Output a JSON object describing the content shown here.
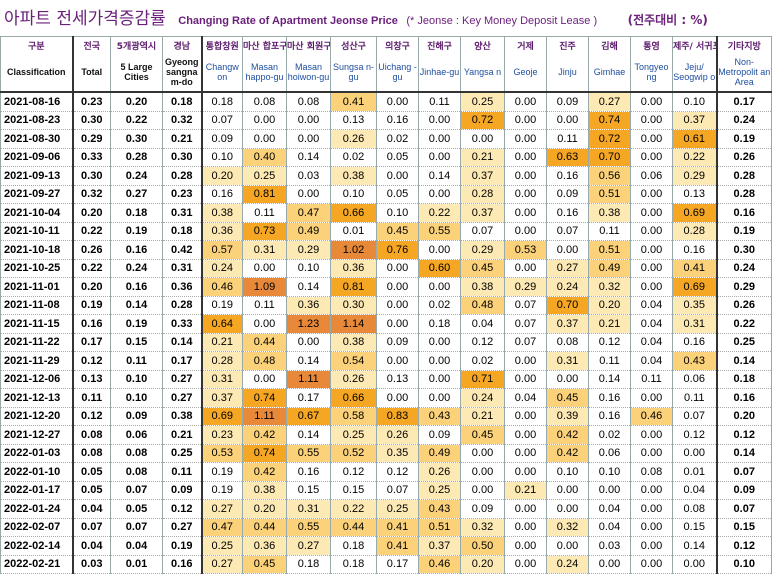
{
  "title": {
    "korean": "아파트 전세가격증감률",
    "english": "Changing Rate of Apartment Jeonse Price",
    "note": "(* Jeonse : Key Money Deposit Lease )",
    "unit": "(전주대비 : %)"
  },
  "columns": [
    {
      "ko": "구분",
      "en": "Classification"
    },
    {
      "ko": "전국",
      "en": "Total"
    },
    {
      "ko": "5개광역시",
      "en": "5 Large Cities"
    },
    {
      "ko": "경남",
      "en": "Gyeong sangna m-do"
    },
    {
      "ko": "통합창원",
      "en": "Changw on"
    },
    {
      "ko": "마산 합포구",
      "en": "Masan happo-gu"
    },
    {
      "ko": "마산 회원구",
      "en": "Masan hoiwon-gu"
    },
    {
      "ko": "성산구",
      "en": "Sungsa n-gu"
    },
    {
      "ko": "의창구",
      "en": "Uichang -gu"
    },
    {
      "ko": "진해구",
      "en": "Jinhae-gu"
    },
    {
      "ko": "양산",
      "en": "Yangsa n"
    },
    {
      "ko": "거제",
      "en": "Geoje"
    },
    {
      "ko": "진주",
      "en": "Jinju"
    },
    {
      "ko": "김해",
      "en": "Gimhae"
    },
    {
      "ko": "통영",
      "en": "Tongyeo ng"
    },
    {
      "ko": "제주/ 서귀포",
      "en": "Jeju/ Seogwip o"
    },
    {
      "ko": "기타지방",
      "en": "Non-Metropolit an Area"
    }
  ],
  "rows": [
    {
      "date": "2021-08-16",
      "v": [
        "0.23",
        "0.20",
        "0.18",
        "0.18",
        "0.08",
        "0.08",
        "0.41",
        "0.00",
        "0.11",
        "0.25",
        "0.00",
        "0.09",
        "0.27",
        "0.00",
        "0.10",
        "0.17"
      ]
    },
    {
      "date": "2021-08-23",
      "v": [
        "0.30",
        "0.22",
        "0.32",
        "0.07",
        "0.00",
        "0.00",
        "0.13",
        "0.16",
        "0.00",
        "0.72",
        "0.00",
        "0.00",
        "0.74",
        "0.00",
        "0.37",
        "0.24"
      ]
    },
    {
      "date": "2021-08-30",
      "v": [
        "0.29",
        "0.30",
        "0.21",
        "0.09",
        "0.00",
        "0.00",
        "0.26",
        "0.02",
        "0.00",
        "0.00",
        "0.00",
        "0.11",
        "0.72",
        "0.00",
        "0.61",
        "0.19"
      ]
    },
    {
      "date": "2021-09-06",
      "v": [
        "0.33",
        "0.28",
        "0.30",
        "0.10",
        "0.40",
        "0.14",
        "0.02",
        "0.05",
        "0.00",
        "0.21",
        "0.00",
        "0.63",
        "0.70",
        "0.00",
        "0.22",
        "0.26"
      ]
    },
    {
      "date": "2021-09-13",
      "v": [
        "0.30",
        "0.24",
        "0.28",
        "0.20",
        "0.25",
        "0.03",
        "0.38",
        "0.00",
        "0.14",
        "0.37",
        "0.00",
        "0.16",
        "0.56",
        "0.06",
        "0.29",
        "0.28"
      ]
    },
    {
      "date": "2021-09-27",
      "v": [
        "0.32",
        "0.27",
        "0.23",
        "0.16",
        "0.81",
        "0.00",
        "0.10",
        "0.05",
        "0.00",
        "0.28",
        "0.00",
        "0.09",
        "0.51",
        "0.00",
        "0.13",
        "0.28"
      ]
    },
    {
      "date": "2021-10-04",
      "v": [
        "0.20",
        "0.18",
        "0.31",
        "0.38",
        "0.11",
        "0.47",
        "0.66",
        "0.10",
        "0.22",
        "0.37",
        "0.00",
        "0.16",
        "0.38",
        "0.00",
        "0.69",
        "0.16"
      ]
    },
    {
      "date": "2021-10-11",
      "v": [
        "0.22",
        "0.19",
        "0.18",
        "0.36",
        "0.73",
        "0.49",
        "0.01",
        "0.45",
        "0.55",
        "0.07",
        "0.00",
        "0.07",
        "0.11",
        "0.00",
        "0.28",
        "0.19"
      ]
    },
    {
      "date": "2021-10-18",
      "v": [
        "0.26",
        "0.16",
        "0.42",
        "0.57",
        "0.31",
        "0.29",
        "1.02",
        "0.76",
        "0.00",
        "0.29",
        "0.53",
        "0.00",
        "0.51",
        "0.00",
        "0.16",
        "0.30"
      ]
    },
    {
      "date": "2021-10-25",
      "v": [
        "0.22",
        "0.24",
        "0.31",
        "0.24",
        "0.00",
        "0.10",
        "0.36",
        "0.00",
        "0.60",
        "0.45",
        "0.00",
        "0.27",
        "0.49",
        "0.00",
        "0.41",
        "0.24"
      ]
    },
    {
      "date": "2021-11-01",
      "v": [
        "0.20",
        "0.16",
        "0.36",
        "0.46",
        "1.09",
        "0.14",
        "0.81",
        "0.00",
        "0.00",
        "0.38",
        "0.29",
        "0.24",
        "0.32",
        "0.00",
        "0.69",
        "0.29"
      ]
    },
    {
      "date": "2021-11-08",
      "v": [
        "0.19",
        "0.14",
        "0.28",
        "0.19",
        "0.11",
        "0.36",
        "0.30",
        "0.00",
        "0.02",
        "0.48",
        "0.07",
        "0.70",
        "0.20",
        "0.04",
        "0.35",
        "0.26"
      ]
    },
    {
      "date": "2021-11-15",
      "v": [
        "0.16",
        "0.19",
        "0.33",
        "0.64",
        "0.00",
        "1.23",
        "1.14",
        "0.00",
        "0.18",
        "0.04",
        "0.07",
        "0.37",
        "0.21",
        "0.04",
        "0.31",
        "0.22"
      ]
    },
    {
      "date": "2021-11-22",
      "v": [
        "0.17",
        "0.15",
        "0.14",
        "0.21",
        "0.44",
        "0.00",
        "0.38",
        "0.09",
        "0.00",
        "0.12",
        "0.07",
        "0.08",
        "0.12",
        "0.04",
        "0.16",
        "0.25"
      ]
    },
    {
      "date": "2021-11-29",
      "v": [
        "0.12",
        "0.11",
        "0.17",
        "0.28",
        "0.48",
        "0.14",
        "0.54",
        "0.00",
        "0.00",
        "0.02",
        "0.00",
        "0.31",
        "0.11",
        "0.04",
        "0.43",
        "0.14"
      ]
    },
    {
      "date": "2021-12-06",
      "v": [
        "0.13",
        "0.10",
        "0.27",
        "0.31",
        "0.00",
        "1.11",
        "0.26",
        "0.13",
        "0.00",
        "0.71",
        "0.00",
        "0.00",
        "0.14",
        "0.11",
        "0.06",
        "0.18"
      ]
    },
    {
      "date": "2021-12-13",
      "v": [
        "0.11",
        "0.10",
        "0.27",
        "0.37",
        "0.74",
        "0.17",
        "0.66",
        "0.00",
        "0.00",
        "0.24",
        "0.04",
        "0.45",
        "0.16",
        "0.00",
        "0.11",
        "0.16"
      ]
    },
    {
      "date": "2021-12-20",
      "v": [
        "0.12",
        "0.09",
        "0.38",
        "0.69",
        "1.11",
        "0.67",
        "0.58",
        "0.83",
        "0.43",
        "0.21",
        "0.00",
        "0.39",
        "0.16",
        "0.46",
        "0.07",
        "0.20"
      ]
    },
    {
      "date": "2021-12-27",
      "v": [
        "0.08",
        "0.06",
        "0.21",
        "0.23",
        "0.42",
        "0.14",
        "0.25",
        "0.26",
        "0.09",
        "0.45",
        "0.00",
        "0.42",
        "0.02",
        "0.00",
        "0.12",
        "0.12"
      ]
    },
    {
      "date": "2022-01-03",
      "v": [
        "0.08",
        "0.08",
        "0.25",
        "0.53",
        "0.74",
        "0.55",
        "0.52",
        "0.35",
        "0.49",
        "0.00",
        "0.00",
        "0.42",
        "0.06",
        "0.00",
        "0.00",
        "0.14"
      ]
    },
    {
      "date": "2022-01-10",
      "v": [
        "0.05",
        "0.08",
        "0.11",
        "0.19",
        "0.42",
        "0.16",
        "0.12",
        "0.12",
        "0.26",
        "0.00",
        "0.00",
        "0.10",
        "0.10",
        "0.08",
        "0.01",
        "0.07"
      ]
    },
    {
      "date": "2022-01-17",
      "v": [
        "0.05",
        "0.07",
        "0.09",
        "0.19",
        "0.38",
        "0.15",
        "0.15",
        "0.07",
        "0.25",
        "0.00",
        "0.21",
        "0.00",
        "0.00",
        "0.00",
        "0.04",
        "0.09"
      ]
    },
    {
      "date": "2022-01-24",
      "v": [
        "0.04",
        "0.05",
        "0.12",
        "0.27",
        "0.20",
        "0.31",
        "0.22",
        "0.25",
        "0.43",
        "0.09",
        "0.00",
        "0.00",
        "0.04",
        "0.00",
        "0.08",
        "0.07"
      ]
    },
    {
      "date": "2022-02-07",
      "v": [
        "0.07",
        "0.07",
        "0.27",
        "0.47",
        "0.44",
        "0.55",
        "0.44",
        "0.41",
        "0.51",
        "0.32",
        "0.00",
        "0.32",
        "0.04",
        "0.00",
        "0.15",
        "0.15"
      ]
    },
    {
      "date": "2022-02-14",
      "v": [
        "0.04",
        "0.04",
        "0.19",
        "0.25",
        "0.36",
        "0.27",
        "0.18",
        "0.41",
        "0.37",
        "0.50",
        "0.00",
        "0.00",
        "0.03",
        "0.00",
        "0.14",
        "0.12"
      ]
    },
    {
      "date": "2022-02-21",
      "v": [
        "0.03",
        "0.01",
        "0.16",
        "0.27",
        "0.45",
        "0.18",
        "0.18",
        "0.17",
        "0.46",
        "0.20",
        "0.00",
        "0.24",
        "0.00",
        "0.00",
        "0.00",
        "0.10"
      ]
    }
  ],
  "colors": {
    "low": "#fde9b4",
    "mid": "#fbd27a",
    "high": "#f5a623",
    "top": "#e8893a"
  }
}
